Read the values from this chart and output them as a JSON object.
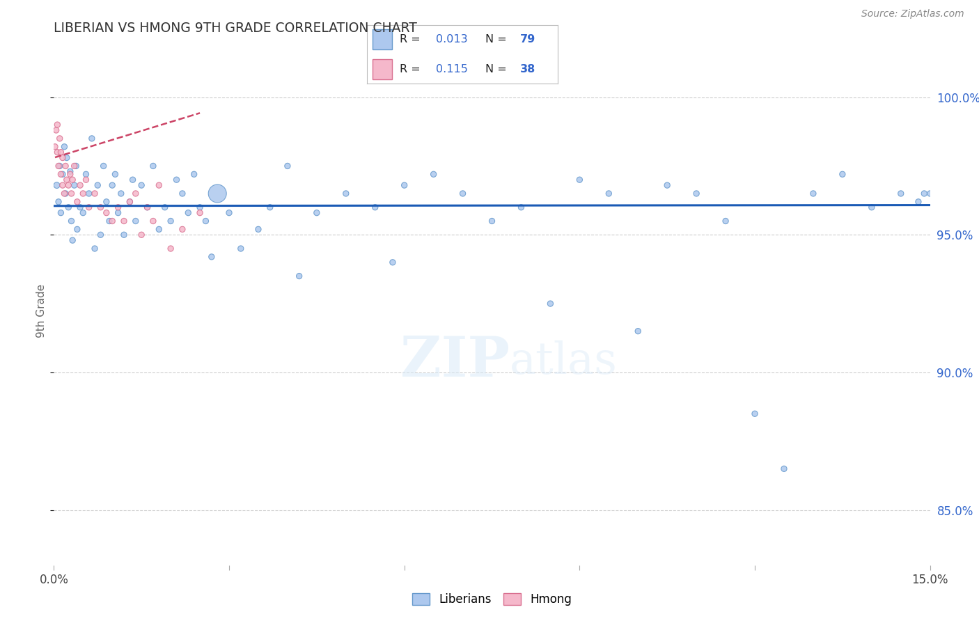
{
  "title": "LIBERIAN VS HMONG 9TH GRADE CORRELATION CHART",
  "source": "Source: ZipAtlas.com",
  "ylabel": "9th Grade",
  "xlim": [
    0.0,
    15.0
  ],
  "ylim": [
    83.0,
    101.5
  ],
  "yticks": [
    85.0,
    90.0,
    95.0,
    100.0
  ],
  "ytick_labels": [
    "85.0%",
    "90.0%",
    "95.0%",
    "100.0%"
  ],
  "liberian_color": "#adc8ee",
  "liberian_edge": "#6699cc",
  "hmong_color": "#f5b8cb",
  "hmong_edge": "#d97090",
  "trend_liberian_color": "#1a5ab5",
  "trend_hmong_color": "#cc4466",
  "watermark_zip": "ZIP",
  "watermark_atlas": "atlas",
  "legend_R_liberian": "0.013",
  "legend_N_liberian": "79",
  "legend_R_hmong": "0.115",
  "legend_N_hmong": "38",
  "liberian_x": [
    0.05,
    0.08,
    0.1,
    0.12,
    0.15,
    0.18,
    0.2,
    0.22,
    0.25,
    0.28,
    0.3,
    0.32,
    0.35,
    0.38,
    0.4,
    0.45,
    0.5,
    0.55,
    0.6,
    0.65,
    0.7,
    0.75,
    0.8,
    0.85,
    0.9,
    0.95,
    1.0,
    1.05,
    1.1,
    1.15,
    1.2,
    1.3,
    1.35,
    1.4,
    1.5,
    1.6,
    1.7,
    1.8,
    1.9,
    2.0,
    2.1,
    2.2,
    2.3,
    2.4,
    2.5,
    2.6,
    2.7,
    2.8,
    3.0,
    3.2,
    3.5,
    3.7,
    4.0,
    4.2,
    4.5,
    5.0,
    5.5,
    5.8,
    6.0,
    6.5,
    7.0,
    7.5,
    8.0,
    8.5,
    9.0,
    9.5,
    10.0,
    10.5,
    11.0,
    11.5,
    12.0,
    12.5,
    13.0,
    13.5,
    14.0,
    14.5,
    14.8,
    14.9,
    15.0
  ],
  "liberian_y": [
    96.8,
    96.2,
    97.5,
    95.8,
    97.2,
    98.2,
    96.5,
    97.8,
    96.0,
    97.3,
    95.5,
    94.8,
    96.8,
    97.5,
    95.2,
    96.0,
    95.8,
    97.2,
    96.5,
    98.5,
    94.5,
    96.8,
    95.0,
    97.5,
    96.2,
    95.5,
    96.8,
    97.2,
    95.8,
    96.5,
    95.0,
    96.2,
    97.0,
    95.5,
    96.8,
    96.0,
    97.5,
    95.2,
    96.0,
    95.5,
    97.0,
    96.5,
    95.8,
    97.2,
    96.0,
    95.5,
    94.2,
    96.5,
    95.8,
    94.5,
    95.2,
    96.0,
    97.5,
    93.5,
    95.8,
    96.5,
    96.0,
    94.0,
    96.8,
    97.2,
    96.5,
    95.5,
    96.0,
    92.5,
    97.0,
    96.5,
    91.5,
    96.8,
    96.5,
    95.5,
    88.5,
    86.5,
    96.5,
    97.2,
    96.0,
    96.5,
    96.2,
    96.5,
    96.5
  ],
  "liberian_size": [
    40,
    35,
    35,
    35,
    35,
    35,
    35,
    35,
    35,
    35,
    35,
    35,
    35,
    35,
    35,
    35,
    35,
    35,
    35,
    35,
    35,
    35,
    35,
    35,
    35,
    35,
    35,
    35,
    35,
    35,
    35,
    35,
    35,
    35,
    35,
    35,
    35,
    35,
    35,
    35,
    35,
    35,
    35,
    35,
    35,
    35,
    35,
    350,
    35,
    35,
    35,
    35,
    35,
    35,
    35,
    35,
    35,
    35,
    35,
    35,
    35,
    35,
    35,
    35,
    35,
    35,
    35,
    35,
    35,
    35,
    35,
    35,
    35,
    35,
    35,
    35,
    35,
    35,
    35
  ],
  "hmong_x": [
    0.02,
    0.04,
    0.06,
    0.06,
    0.08,
    0.1,
    0.12,
    0.12,
    0.15,
    0.15,
    0.18,
    0.2,
    0.22,
    0.25,
    0.28,
    0.3,
    0.32,
    0.35,
    0.4,
    0.45,
    0.5,
    0.55,
    0.6,
    0.7,
    0.8,
    0.9,
    1.0,
    1.1,
    1.2,
    1.3,
    1.4,
    1.5,
    1.6,
    1.7,
    1.8,
    2.0,
    2.2,
    2.5
  ],
  "hmong_y": [
    98.2,
    98.8,
    99.0,
    98.0,
    97.5,
    98.5,
    97.2,
    98.0,
    97.8,
    96.8,
    96.5,
    97.5,
    97.0,
    96.8,
    97.2,
    96.5,
    97.0,
    97.5,
    96.2,
    96.8,
    96.5,
    97.0,
    96.0,
    96.5,
    96.0,
    95.8,
    95.5,
    96.0,
    95.5,
    96.2,
    96.5,
    95.0,
    96.0,
    95.5,
    96.8,
    94.5,
    95.2,
    95.8
  ],
  "hmong_size": [
    35,
    35,
    35,
    35,
    35,
    35,
    35,
    35,
    35,
    35,
    35,
    35,
    35,
    35,
    35,
    35,
    35,
    35,
    35,
    35,
    35,
    35,
    35,
    35,
    35,
    35,
    35,
    35,
    35,
    35,
    35,
    35,
    35,
    35,
    35,
    35,
    35,
    35
  ],
  "lib_trend_y_intercept": 96.05,
  "lib_trend_slope": 0.002,
  "hmong_trend_y_intercept": 97.8,
  "hmong_trend_slope": 0.65,
  "background_color": "#ffffff",
  "grid_color": "#c8c8c8",
  "accent_color": "#3366cc"
}
